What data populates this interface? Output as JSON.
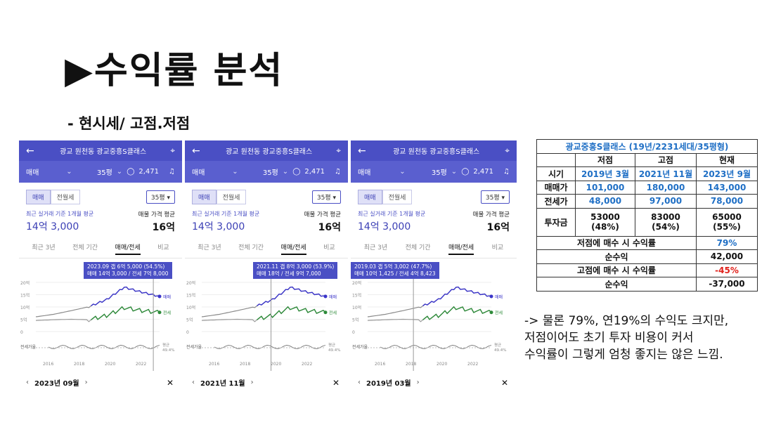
{
  "title": "▶수익률 분석",
  "subtitle": "- 현시세/ 고점.저점",
  "panels": [
    {
      "location": "광교 원천동 광교중흥S클래스",
      "deal_type": "매매",
      "area": "35평",
      "count": "2,471",
      "tab_sale": "매매",
      "tab_rent": "전월세",
      "pyeong_select": "35평",
      "recent_label": "최근 실거래 기준 1개월 평균",
      "recent_price": "14억 3,000",
      "listing_label": "매물 가격 평균",
      "listing_price": "16억",
      "ranges": [
        "최근 3년",
        "전체 기간",
        "매매/전세",
        "비교"
      ],
      "tooltip_line1": "2023.09  갭 6억 5,000 (54.5%)",
      "tooltip_line2": "매매 14억 3,000 / 전세 7억 8,000",
      "footer_date": "2023년 09월"
    },
    {
      "location": "광교 원천동 광교중흥S클래스",
      "deal_type": "매매",
      "area": "35평",
      "count": "2,471",
      "tab_sale": "매매",
      "tab_rent": "전월세",
      "pyeong_select": "35평",
      "recent_label": "최근 실거래 기준 1개월 평균",
      "recent_price": "14억 3,000",
      "listing_label": "매물 가격 평균",
      "listing_price": "16억",
      "ranges": [
        "최근 3년",
        "전체 기간",
        "매매/전세",
        "비교"
      ],
      "tooltip_line1": "2021.11  갭 8억 3,000 (53.9%)",
      "tooltip_line2": "매매 18억 / 전세 9억 7,000",
      "footer_date": "2021년 11월"
    },
    {
      "location": "광교 원천동 광교중흥S클래스",
      "deal_type": "매매",
      "area": "35평",
      "count": "2,471",
      "tab_sale": "매매",
      "tab_rent": "전월세",
      "pyeong_select": "35평",
      "recent_label": "최근 실거래 기준 1개월 평균",
      "recent_price": "14억 3,000",
      "listing_label": "매물 가격 평균",
      "listing_price": "16억",
      "ranges": [
        "최근 3년",
        "전체 기간",
        "매매/전세",
        "비교"
      ],
      "tooltip_line1": "2019.03  갭 5억 3,002 (47.7%)",
      "tooltip_line2": "매매 10억 1,425 / 전세 4억 8,423",
      "footer_date": "2019년 03월"
    }
  ],
  "chart_common": {
    "y_ticks": [
      "20억",
      "15억",
      "10억",
      "5억",
      "0"
    ],
    "x_ticks": [
      "2016",
      "2018",
      "2020",
      "2022"
    ],
    "sale_label": "매매",
    "jeonse_label": "전세",
    "ratio_label": "전세가율",
    "avg_label": "평균",
    "avg_value": "49.4%"
  },
  "table": {
    "title": "광교중흥S클래스 (19년/2231세대/35평형)",
    "headers": [
      "",
      "저점",
      "고점",
      "현재"
    ],
    "rows": [
      [
        "시기",
        "2019년 3월",
        "2021년 11월",
        "2023년 9월"
      ],
      [
        "매매가",
        "101,000",
        "180,000",
        "143,000"
      ],
      [
        "전세가",
        "48,000",
        "97,000",
        "78,000"
      ]
    ],
    "invest_label": "투자금",
    "invest": [
      [
        "53000",
        "(48%)"
      ],
      [
        "83000",
        "(54%)"
      ],
      [
        "65000",
        "(55%)"
      ]
    ],
    "summary": [
      {
        "label": "저점에 매수 시 수익률",
        "value": "79%",
        "color": "#1f6fc5"
      },
      {
        "label": "순수익",
        "value": "42,000",
        "color": "#111111"
      },
      {
        "label": "고점에 매수 시 수익률",
        "value": "-45%",
        "color": "#e0201a"
      },
      {
        "label": "순수익",
        "value": "-37,000",
        "color": "#111111"
      }
    ]
  },
  "note": [
    "-> 물론 79%, 연19%의 수익도 크지만,",
    "저점이어도 초기 투자 비용이 커서",
    "수익률이 그렇게 엄청 좋지는 않은 느낌."
  ],
  "chart_data": [
    {
      "type": "line",
      "title": "",
      "x": [
        "2016",
        "2017",
        "2018",
        "2019",
        "2020",
        "2021",
        "2022",
        "2023"
      ],
      "series": [
        {
          "name": "매매",
          "values": [
            6,
            7,
            8.5,
            10.1,
            13,
            18,
            16,
            14.3
          ]
        },
        {
          "name": "전세",
          "values": [
            4.5,
            4.8,
            5,
            4.8,
            6.5,
            9.7,
            8.5,
            7.8
          ]
        }
      ],
      "ylim": [
        0,
        20
      ]
    }
  ]
}
